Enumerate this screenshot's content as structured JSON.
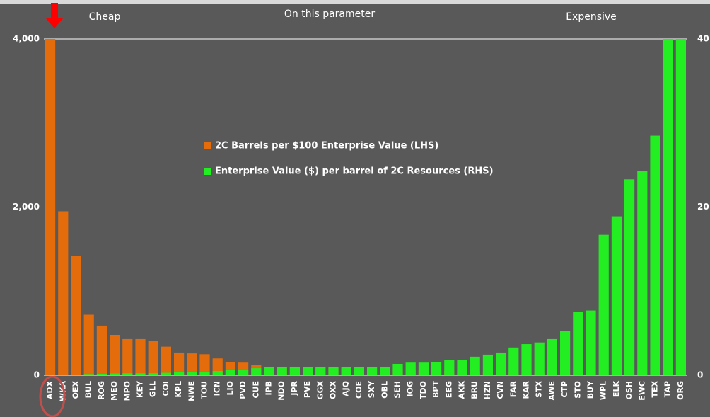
{
  "chart_data": {
    "type": "bar",
    "annotations": [
      "Cheap",
      "On this parameter",
      "Expensive"
    ],
    "categories": [
      "ADX",
      "WKA",
      "OEX",
      "BUL",
      "ROG",
      "MEO",
      "MPO",
      "KEY",
      "GLL",
      "COI",
      "KPL",
      "NWE",
      "TOU",
      "ICN",
      "LIO",
      "PVD",
      "CUE",
      "IPB",
      "NDO",
      "JPR",
      "PVE",
      "GGX",
      "OXX",
      "AJQ",
      "COE",
      "SXY",
      "OBL",
      "SEH",
      "IOG",
      "TDO",
      "BPT",
      "EEG",
      "AKK",
      "BRU",
      "HZN",
      "CVN",
      "FAR",
      "KAR",
      "STX",
      "AWE",
      "CTP",
      "STO",
      "BUY",
      "WPL",
      "ELK",
      "OSH",
      "EWC",
      "TEX",
      "TAP",
      "ORG"
    ],
    "series": [
      {
        "name": "2C Barrels per $100 Enterprise Value (LHS)",
        "color": "#e46c0a",
        "values": [
          4000,
          1950,
          1420,
          720,
          590,
          480,
          430,
          430,
          410,
          340,
          270,
          260,
          250,
          200,
          160,
          150,
          120,
          100,
          100,
          100,
          90,
          90,
          85,
          85,
          80,
          80,
          70,
          74,
          67,
          67,
          63,
          54,
          54,
          45,
          41,
          37,
          30,
          27,
          26,
          23,
          19,
          13,
          13,
          6,
          5,
          4,
          4,
          3.5,
          2,
          1
        ]
      },
      {
        "name": "Enterprise Value ($) per barrel of 2C Resources (RHS)",
        "color": "#22ee22",
        "axis": "y2",
        "values": [
          0.02,
          0.05,
          0.07,
          0.14,
          0.17,
          0.21,
          0.23,
          0.23,
          0.24,
          0.29,
          0.37,
          0.38,
          0.4,
          0.5,
          0.63,
          0.67,
          0.83,
          1,
          1,
          1,
          0.93,
          0.93,
          0.93,
          0.93,
          0.93,
          1,
          1,
          1.35,
          1.5,
          1.5,
          1.6,
          1.85,
          1.85,
          2.2,
          2.45,
          2.7,
          3.3,
          3.7,
          3.9,
          4.3,
          5.3,
          7.5,
          7.7,
          16.7,
          18.9,
          23.3,
          24.3,
          28.5,
          40,
          40
        ]
      }
    ],
    "ylim": [
      0,
      4000
    ],
    "yticks": [
      0,
      {
        "value": 2000,
        "label": "2,000"
      },
      {
        "value": 4000,
        "label": "4,000"
      }
    ],
    "y2lim": [
      0,
      40
    ],
    "y2ticks": [
      0,
      20,
      40
    ],
    "grid": true
  }
}
